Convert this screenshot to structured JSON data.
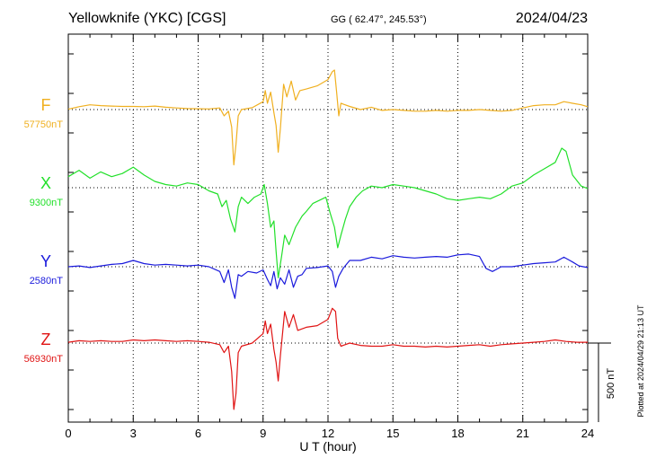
{
  "chart_data": {
    "type": "line",
    "title_left": "Yellowknife (YKC)  [CGS]",
    "title_center": "GG ( 62.47°, 245.53°)",
    "title_right": "2024/04/23",
    "xlabel": "U T (hour)",
    "xlim": [
      0,
      24
    ],
    "x_ticks": [
      "0",
      "3",
      "6",
      "9",
      "12",
      "15",
      "18",
      "21",
      "24"
    ],
    "grid": true,
    "scale_bar_label": "500 nT",
    "scale_bar_nT": 500,
    "plotted_note": "Plotted at 2024/04/29 21:13 UT",
    "series": [
      {
        "name": "F",
        "baseline": "57750nT",
        "baseline_nT": 57750,
        "color": "#f0b020",
        "points": [
          [
            0,
            2
          ],
          [
            0.5,
            18
          ],
          [
            1,
            30
          ],
          [
            1.5,
            25
          ],
          [
            2,
            22
          ],
          [
            2.5,
            20
          ],
          [
            3,
            20
          ],
          [
            3.5,
            18
          ],
          [
            4,
            22
          ],
          [
            4.5,
            15
          ],
          [
            5,
            10
          ],
          [
            5.5,
            6
          ],
          [
            6,
            5
          ],
          [
            6.5,
            4
          ],
          [
            7,
            10
          ],
          [
            7.2,
            -40
          ],
          [
            7.4,
            -10
          ],
          [
            7.55,
            -110
          ],
          [
            7.65,
            -350
          ],
          [
            7.75,
            -220
          ],
          [
            7.85,
            -40
          ],
          [
            8,
            0
          ],
          [
            8.5,
            12
          ],
          [
            9,
            50
          ],
          [
            9.1,
            120
          ],
          [
            9.2,
            40
          ],
          [
            9.35,
            110
          ],
          [
            9.5,
            -20
          ],
          [
            9.6,
            -100
          ],
          [
            9.7,
            -270
          ],
          [
            9.8,
            -120
          ],
          [
            9.95,
            160
          ],
          [
            10.1,
            80
          ],
          [
            10.3,
            180
          ],
          [
            10.5,
            60
          ],
          [
            10.7,
            120
          ],
          [
            11,
            130
          ],
          [
            11.5,
            150
          ],
          [
            12,
            190
          ],
          [
            12.2,
            240
          ],
          [
            12.3,
            250
          ],
          [
            12.4,
            110
          ],
          [
            12.5,
            -40
          ],
          [
            12.6,
            40
          ],
          [
            13,
            20
          ],
          [
            13.5,
            0
          ],
          [
            14,
            15
          ],
          [
            14.5,
            -5
          ],
          [
            15,
            0
          ],
          [
            15.5,
            -5
          ],
          [
            16,
            -10
          ],
          [
            16.5,
            -10
          ],
          [
            17,
            -5
          ],
          [
            17.5,
            -10
          ],
          [
            18,
            -5
          ],
          [
            18.5,
            -5
          ],
          [
            19,
            0
          ],
          [
            19.5,
            -5
          ],
          [
            20,
            -10
          ],
          [
            20.5,
            -5
          ],
          [
            21,
            10
          ],
          [
            21.5,
            25
          ],
          [
            22,
            30
          ],
          [
            22.5,
            30
          ],
          [
            22.9,
            50
          ],
          [
            23.3,
            40
          ],
          [
            23.7,
            30
          ],
          [
            24,
            18
          ]
        ]
      },
      {
        "name": "X",
        "baseline": "9300nT",
        "baseline_nT": 9300,
        "color": "#22e02a",
        "points": [
          [
            0,
            70
          ],
          [
            0.5,
            110
          ],
          [
            1,
            60
          ],
          [
            1.5,
            100
          ],
          [
            2,
            70
          ],
          [
            2.5,
            90
          ],
          [
            3,
            130
          ],
          [
            3.5,
            80
          ],
          [
            4,
            40
          ],
          [
            4.5,
            20
          ],
          [
            5,
            10
          ],
          [
            5.5,
            30
          ],
          [
            6,
            20
          ],
          [
            6.5,
            -20
          ],
          [
            6.9,
            -40
          ],
          [
            7.1,
            -120
          ],
          [
            7.3,
            -80
          ],
          [
            7.5,
            -200
          ],
          [
            7.7,
            -280
          ],
          [
            7.85,
            -120
          ],
          [
            8,
            -60
          ],
          [
            8.3,
            -100
          ],
          [
            8.6,
            -60
          ],
          [
            8.9,
            -40
          ],
          [
            9.05,
            20
          ],
          [
            9.2,
            -100
          ],
          [
            9.35,
            -250
          ],
          [
            9.5,
            -210
          ],
          [
            9.6,
            -400
          ],
          [
            9.7,
            -570
          ],
          [
            9.85,
            -440
          ],
          [
            10,
            -300
          ],
          [
            10.2,
            -360
          ],
          [
            10.5,
            -250
          ],
          [
            10.8,
            -180
          ],
          [
            11,
            -150
          ],
          [
            11.3,
            -100
          ],
          [
            11.6,
            -80
          ],
          [
            11.9,
            -60
          ],
          [
            12.1,
            -160
          ],
          [
            12.3,
            -250
          ],
          [
            12.45,
            -380
          ],
          [
            12.6,
            -300
          ],
          [
            12.8,
            -200
          ],
          [
            13,
            -120
          ],
          [
            13.3,
            -60
          ],
          [
            13.6,
            -20
          ],
          [
            14,
            10
          ],
          [
            14.5,
            0
          ],
          [
            15,
            20
          ],
          [
            15.5,
            10
          ],
          [
            16,
            0
          ],
          [
            16.5,
            -20
          ],
          [
            17,
            -40
          ],
          [
            17.5,
            -70
          ],
          [
            18,
            -80
          ],
          [
            18.5,
            -70
          ],
          [
            19,
            -60
          ],
          [
            19.5,
            -70
          ],
          [
            20,
            -40
          ],
          [
            20.5,
            10
          ],
          [
            21,
            30
          ],
          [
            21.5,
            80
          ],
          [
            22,
            120
          ],
          [
            22.5,
            160
          ],
          [
            22.8,
            250
          ],
          [
            23,
            230
          ],
          [
            23.3,
            80
          ],
          [
            23.7,
            10
          ],
          [
            24,
            -5
          ]
        ]
      },
      {
        "name": "Y",
        "baseline": "2580nT",
        "baseline_nT": 2580,
        "color": "#1a1adc",
        "points": [
          [
            0,
            0
          ],
          [
            0.5,
            5
          ],
          [
            1,
            -5
          ],
          [
            1.5,
            5
          ],
          [
            2,
            15
          ],
          [
            2.5,
            20
          ],
          [
            3,
            40
          ],
          [
            3.5,
            20
          ],
          [
            4,
            10
          ],
          [
            4.5,
            15
          ],
          [
            5,
            10
          ],
          [
            5.5,
            5
          ],
          [
            6,
            10
          ],
          [
            6.5,
            0
          ],
          [
            7,
            -30
          ],
          [
            7.2,
            -100
          ],
          [
            7.4,
            -20
          ],
          [
            7.55,
            -130
          ],
          [
            7.7,
            -200
          ],
          [
            7.85,
            -50
          ],
          [
            8,
            -60
          ],
          [
            8.3,
            -30
          ],
          [
            8.7,
            -40
          ],
          [
            9,
            -20
          ],
          [
            9.2,
            -80
          ],
          [
            9.35,
            -120
          ],
          [
            9.5,
            -30
          ],
          [
            9.65,
            -140
          ],
          [
            9.8,
            -70
          ],
          [
            10,
            -110
          ],
          [
            10.2,
            -20
          ],
          [
            10.4,
            -130
          ],
          [
            10.6,
            -60
          ],
          [
            10.8,
            -50
          ],
          [
            11,
            -10
          ],
          [
            11.5,
            -5
          ],
          [
            12,
            5
          ],
          [
            12.2,
            -30
          ],
          [
            12.35,
            -130
          ],
          [
            12.5,
            -60
          ],
          [
            12.7,
            -10
          ],
          [
            13,
            40
          ],
          [
            13.5,
            40
          ],
          [
            14,
            60
          ],
          [
            14.5,
            50
          ],
          [
            15,
            70
          ],
          [
            15.5,
            60
          ],
          [
            16,
            55
          ],
          [
            16.5,
            60
          ],
          [
            17,
            65
          ],
          [
            17.5,
            60
          ],
          [
            18,
            75
          ],
          [
            18.5,
            80
          ],
          [
            19,
            65
          ],
          [
            19.3,
            -10
          ],
          [
            19.6,
            -30
          ],
          [
            20,
            0
          ],
          [
            20.5,
            0
          ],
          [
            21,
            10
          ],
          [
            21.5,
            20
          ],
          [
            22,
            25
          ],
          [
            22.5,
            30
          ],
          [
            22.9,
            60
          ],
          [
            23.3,
            30
          ],
          [
            23.6,
            5
          ],
          [
            24,
            -5
          ]
        ]
      },
      {
        "name": "Z",
        "baseline": "56930nT",
        "baseline_nT": 56930,
        "color": "#e01414",
        "points": [
          [
            0,
            5
          ],
          [
            0.5,
            15
          ],
          [
            1,
            10
          ],
          [
            1.5,
            15
          ],
          [
            2,
            10
          ],
          [
            2.5,
            10
          ],
          [
            3,
            20
          ],
          [
            3.5,
            15
          ],
          [
            4,
            20
          ],
          [
            4.5,
            15
          ],
          [
            5,
            10
          ],
          [
            5.5,
            15
          ],
          [
            6,
            10
          ],
          [
            6.5,
            5
          ],
          [
            7,
            -10
          ],
          [
            7.2,
            -60
          ],
          [
            7.4,
            -20
          ],
          [
            7.55,
            -180
          ],
          [
            7.65,
            -420
          ],
          [
            7.75,
            -320
          ],
          [
            7.85,
            -60
          ],
          [
            8,
            -20
          ],
          [
            8.5,
            0
          ],
          [
            9,
            60
          ],
          [
            9.1,
            140
          ],
          [
            9.2,
            60
          ],
          [
            9.35,
            120
          ],
          [
            9.5,
            -40
          ],
          [
            9.6,
            -120
          ],
          [
            9.7,
            -240
          ],
          [
            9.8,
            -80
          ],
          [
            10,
            200
          ],
          [
            10.2,
            100
          ],
          [
            10.4,
            180
          ],
          [
            10.6,
            80
          ],
          [
            11,
            100
          ],
          [
            11.5,
            110
          ],
          [
            12,
            150
          ],
          [
            12.2,
            220
          ],
          [
            12.35,
            200
          ],
          [
            12.45,
            30
          ],
          [
            12.6,
            -20
          ],
          [
            13,
            0
          ],
          [
            13.5,
            -15
          ],
          [
            14,
            -20
          ],
          [
            14.5,
            -20
          ],
          [
            15,
            -10
          ],
          [
            15.5,
            -20
          ],
          [
            16,
            -20
          ],
          [
            16.5,
            -25
          ],
          [
            17,
            -20
          ],
          [
            17.5,
            -25
          ],
          [
            18,
            -20
          ],
          [
            18.5,
            -15
          ],
          [
            19,
            -10
          ],
          [
            19.5,
            -20
          ],
          [
            20,
            -10
          ],
          [
            20.5,
            -5
          ],
          [
            21,
            0
          ],
          [
            21.5,
            5
          ],
          [
            22,
            10
          ],
          [
            22.5,
            20
          ],
          [
            23,
            10
          ],
          [
            23.5,
            5
          ],
          [
            24,
            5
          ]
        ]
      }
    ]
  }
}
